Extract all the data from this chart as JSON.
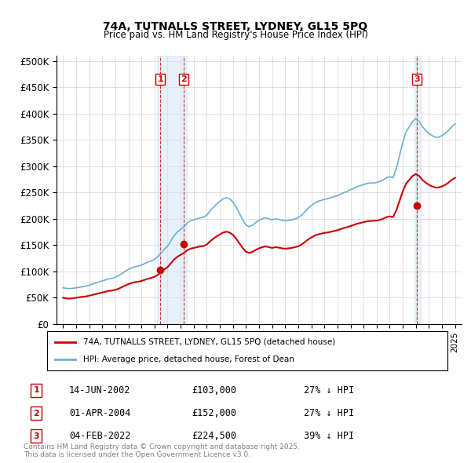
{
  "title1": "74A, TUTNALLS STREET, LYDNEY, GL15 5PQ",
  "title2": "Price paid vs. HM Land Registry's House Price Index (HPI)",
  "ylabel_ticks": [
    "£0",
    "£50K",
    "£100K",
    "£150K",
    "£200K",
    "£250K",
    "£300K",
    "£350K",
    "£400K",
    "£450K",
    "£500K"
  ],
  "ytick_values": [
    0,
    50000,
    100000,
    150000,
    200000,
    250000,
    300000,
    350000,
    400000,
    450000,
    500000
  ],
  "ylim": [
    0,
    510000
  ],
  "xlim_start": 1994.5,
  "xlim_end": 2025.5,
  "hpi_color": "#6baed6",
  "price_color": "#cc0000",
  "transaction_color": "#cc0000",
  "shade_color": "#d0e4f7",
  "vline_color": "#cc0000",
  "legend_label_price": "74A, TUTNALLS STREET, LYDNEY, GL15 5PQ (detached house)",
  "legend_label_hpi": "HPI: Average price, detached house, Forest of Dean",
  "transactions": [
    {
      "num": 1,
      "date": "14-JUN-2002",
      "price": 103000,
      "pct": "27% ↓ HPI",
      "year": 2002.45
    },
    {
      "num": 2,
      "date": "01-APR-2004",
      "price": 152000,
      "pct": "27% ↓ HPI",
      "year": 2004.25
    },
    {
      "num": 3,
      "date": "04-FEB-2022",
      "price": 224500,
      "pct": "39% ↓ HPI",
      "year": 2022.08
    }
  ],
  "footnote": "Contains HM Land Registry data © Crown copyright and database right 2025.\nThis data is licensed under the Open Government Licence v3.0.",
  "hpi_data": {
    "years": [
      1995.0,
      1995.25,
      1995.5,
      1995.75,
      1996.0,
      1996.25,
      1996.5,
      1996.75,
      1997.0,
      1997.25,
      1997.5,
      1997.75,
      1998.0,
      1998.25,
      1998.5,
      1998.75,
      1999.0,
      1999.25,
      1999.5,
      1999.75,
      2000.0,
      2000.25,
      2000.5,
      2000.75,
      2001.0,
      2001.25,
      2001.5,
      2001.75,
      2002.0,
      2002.25,
      2002.5,
      2002.75,
      2003.0,
      2003.25,
      2003.5,
      2003.75,
      2004.0,
      2004.25,
      2004.5,
      2004.75,
      2005.0,
      2005.25,
      2005.5,
      2005.75,
      2006.0,
      2006.25,
      2006.5,
      2006.75,
      2007.0,
      2007.25,
      2007.5,
      2007.75,
      2008.0,
      2008.25,
      2008.5,
      2008.75,
      2009.0,
      2009.25,
      2009.5,
      2009.75,
      2010.0,
      2010.25,
      2010.5,
      2010.75,
      2011.0,
      2011.25,
      2011.5,
      2011.75,
      2012.0,
      2012.25,
      2012.5,
      2012.75,
      2013.0,
      2013.25,
      2013.5,
      2013.75,
      2014.0,
      2014.25,
      2014.5,
      2014.75,
      2015.0,
      2015.25,
      2015.5,
      2015.75,
      2016.0,
      2016.25,
      2016.5,
      2016.75,
      2017.0,
      2017.25,
      2017.5,
      2017.75,
      2018.0,
      2018.25,
      2018.5,
      2018.75,
      2019.0,
      2019.25,
      2019.5,
      2019.75,
      2020.0,
      2020.25,
      2020.5,
      2020.75,
      2021.0,
      2021.25,
      2021.5,
      2021.75,
      2022.0,
      2022.25,
      2022.5,
      2022.75,
      2023.0,
      2023.25,
      2023.5,
      2023.75,
      2024.0,
      2024.25,
      2024.5,
      2024.75,
      2025.0
    ],
    "values": [
      69000,
      68000,
      67500,
      68000,
      69000,
      70000,
      71000,
      72000,
      74000,
      76000,
      78000,
      80000,
      82000,
      84000,
      86000,
      87000,
      89000,
      92000,
      96000,
      100000,
      104000,
      107000,
      109000,
      110000,
      112000,
      115000,
      118000,
      120000,
      123000,
      128000,
      135000,
      142000,
      148000,
      158000,
      168000,
      175000,
      180000,
      185000,
      192000,
      196000,
      198000,
      200000,
      202000,
      203000,
      207000,
      215000,
      222000,
      228000,
      233000,
      238000,
      240000,
      238000,
      232000,
      222000,
      210000,
      198000,
      188000,
      185000,
      188000,
      193000,
      197000,
      200000,
      202000,
      200000,
      198000,
      200000,
      199000,
      197000,
      196000,
      197000,
      198000,
      200000,
      202000,
      207000,
      213000,
      220000,
      225000,
      230000,
      233000,
      235000,
      237000,
      238000,
      240000,
      242000,
      244000,
      247000,
      250000,
      252000,
      255000,
      258000,
      261000,
      263000,
      265000,
      267000,
      268000,
      268000,
      269000,
      271000,
      274000,
      278000,
      280000,
      278000,
      295000,
      320000,
      345000,
      365000,
      375000,
      385000,
      390000,
      385000,
      375000,
      368000,
      362000,
      358000,
      355000,
      355000,
      358000,
      362000,
      368000,
      375000,
      380000
    ]
  },
  "price_data": {
    "years": [
      1995.0,
      1995.25,
      1995.5,
      1995.75,
      1996.0,
      1996.25,
      1996.5,
      1996.75,
      1997.0,
      1997.25,
      1997.5,
      1997.75,
      1998.0,
      1998.25,
      1998.5,
      1998.75,
      1999.0,
      1999.25,
      1999.5,
      1999.75,
      2000.0,
      2000.25,
      2000.5,
      2000.75,
      2001.0,
      2001.25,
      2001.5,
      2001.75,
      2002.0,
      2002.25,
      2002.5,
      2002.75,
      2003.0,
      2003.25,
      2003.5,
      2003.75,
      2004.0,
      2004.25,
      2004.5,
      2004.75,
      2005.0,
      2005.25,
      2005.5,
      2005.75,
      2006.0,
      2006.25,
      2006.5,
      2006.75,
      2007.0,
      2007.25,
      2007.5,
      2007.75,
      2008.0,
      2008.25,
      2008.5,
      2008.75,
      2009.0,
      2009.25,
      2009.5,
      2009.75,
      2010.0,
      2010.25,
      2010.5,
      2010.75,
      2011.0,
      2011.25,
      2011.5,
      2011.75,
      2012.0,
      2012.25,
      2012.5,
      2012.75,
      2013.0,
      2013.25,
      2013.5,
      2013.75,
      2014.0,
      2014.25,
      2014.5,
      2014.75,
      2015.0,
      2015.25,
      2015.5,
      2015.75,
      2016.0,
      2016.25,
      2016.5,
      2016.75,
      2017.0,
      2017.25,
      2017.5,
      2017.75,
      2018.0,
      2018.25,
      2018.5,
      2018.75,
      2019.0,
      2019.25,
      2019.5,
      2019.75,
      2020.0,
      2020.25,
      2020.5,
      2020.75,
      2021.0,
      2021.25,
      2021.5,
      2021.75,
      2022.0,
      2022.25,
      2022.5,
      2022.75,
      2023.0,
      2023.25,
      2023.5,
      2023.75,
      2024.0,
      2024.25,
      2024.5,
      2024.75,
      2025.0
    ],
    "values": [
      50000,
      49000,
      48500,
      49000,
      50000,
      51000,
      52000,
      52500,
      54000,
      55500,
      57000,
      58500,
      60000,
      61500,
      63000,
      63700,
      65000,
      67200,
      70200,
      73100,
      76000,
      78200,
      79700,
      80500,
      81900,
      84000,
      86200,
      87700,
      90000,
      93500,
      98600,
      103800,
      108200,
      115400,
      122800,
      127900,
      131600,
      135200,
      140300,
      143200,
      144700,
      146000,
      147500,
      148200,
      151200,
      157100,
      162200,
      166500,
      170200,
      173900,
      175500,
      173900,
      169500,
      162200,
      153400,
      144700,
      137300,
      135200,
      137300,
      141000,
      143900,
      146100,
      147500,
      146100,
      144700,
      146100,
      145400,
      143900,
      143200,
      143900,
      144700,
      146100,
      147500,
      151200,
      155600,
      160700,
      164400,
      168100,
      170200,
      171700,
      173200,
      174000,
      175400,
      176800,
      178300,
      180400,
      182600,
      184100,
      186300,
      188400,
      190600,
      192100,
      193600,
      195100,
      196000,
      196000,
      196600,
      197900,
      200200,
      203200,
      204600,
      203200,
      215600,
      233900,
      252100,
      266600,
      274000,
      281300,
      285000,
      281300,
      274000,
      268800,
      264500,
      261600,
      259400,
      259400,
      261600,
      264500,
      268800,
      274000,
      277700
    ]
  }
}
